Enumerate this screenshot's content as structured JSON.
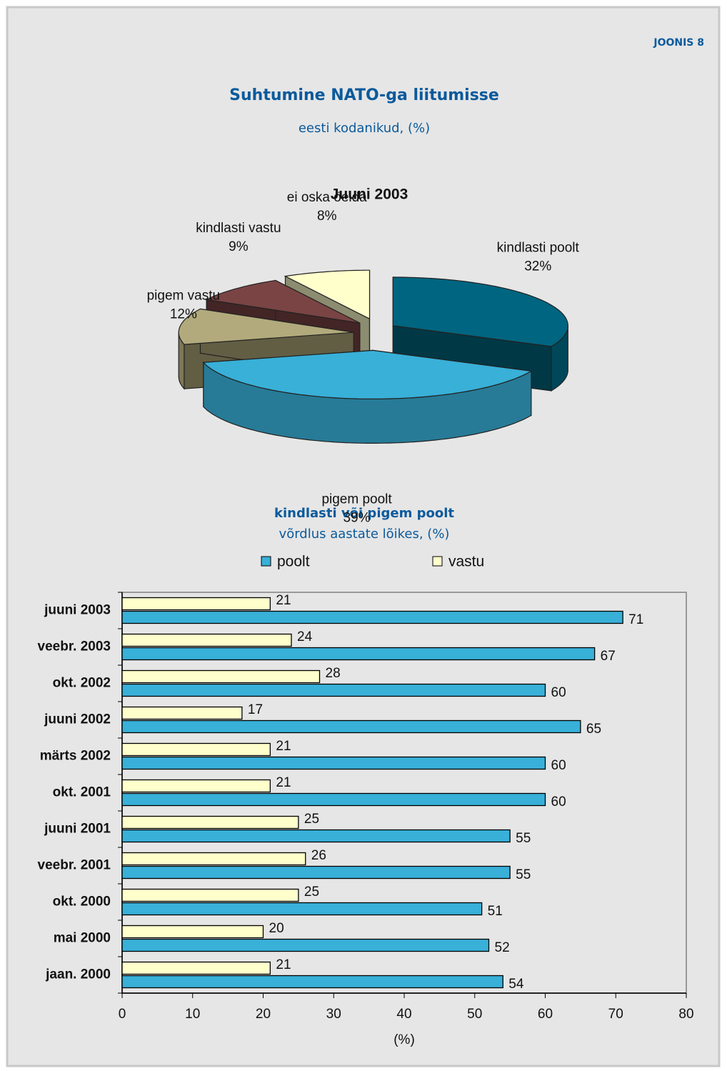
{
  "header": {
    "label": "JOONIS 8",
    "title": "Suhtumine NATO-ga liitumisse",
    "subtitle": "eesti kodanikud, (%)"
  },
  "chart_data": [
    {
      "type": "pie",
      "title": "Juuni 2003",
      "categories": [
        "kindlasti poolt",
        "pigem poolt",
        "pigem vastu",
        "kindlasti vastu",
        "ei oska öelda"
      ],
      "values": [
        32,
        39,
        12,
        9,
        8
      ],
      "value_labels": [
        "32%",
        "39%",
        "12%",
        "9%",
        "8%"
      ],
      "colors": [
        "#006580",
        "#38b0d8",
        "#b2aa7c",
        "#7a4444",
        "#ffffcc"
      ]
    },
    {
      "type": "barh",
      "title": "kindlasti või pigem poolt",
      "subtitle": "võrdlus aastate lõikes, (%)",
      "categories": [
        "juuni 2003",
        "veebr. 2003",
        "okt. 2002",
        "juuni 2002",
        "märts 2002",
        "okt. 2001",
        "juuni 2001",
        "veebr. 2001",
        "okt. 2000",
        "mai 2000",
        "jaan. 2000"
      ],
      "series": [
        {
          "name": "poolt",
          "color": "#38b0d8",
          "values": [
            71,
            67,
            60,
            65,
            60,
            60,
            55,
            55,
            51,
            52,
            54
          ]
        },
        {
          "name": "vastu",
          "color": "#ffffcc",
          "values": [
            21,
            24,
            28,
            17,
            21,
            21,
            25,
            26,
            25,
            20,
            21
          ]
        }
      ],
      "xlim": [
        0,
        80
      ],
      "xticks": [
        0,
        10,
        20,
        30,
        40,
        50,
        60,
        70,
        80
      ],
      "xlabel": "(%)"
    }
  ]
}
